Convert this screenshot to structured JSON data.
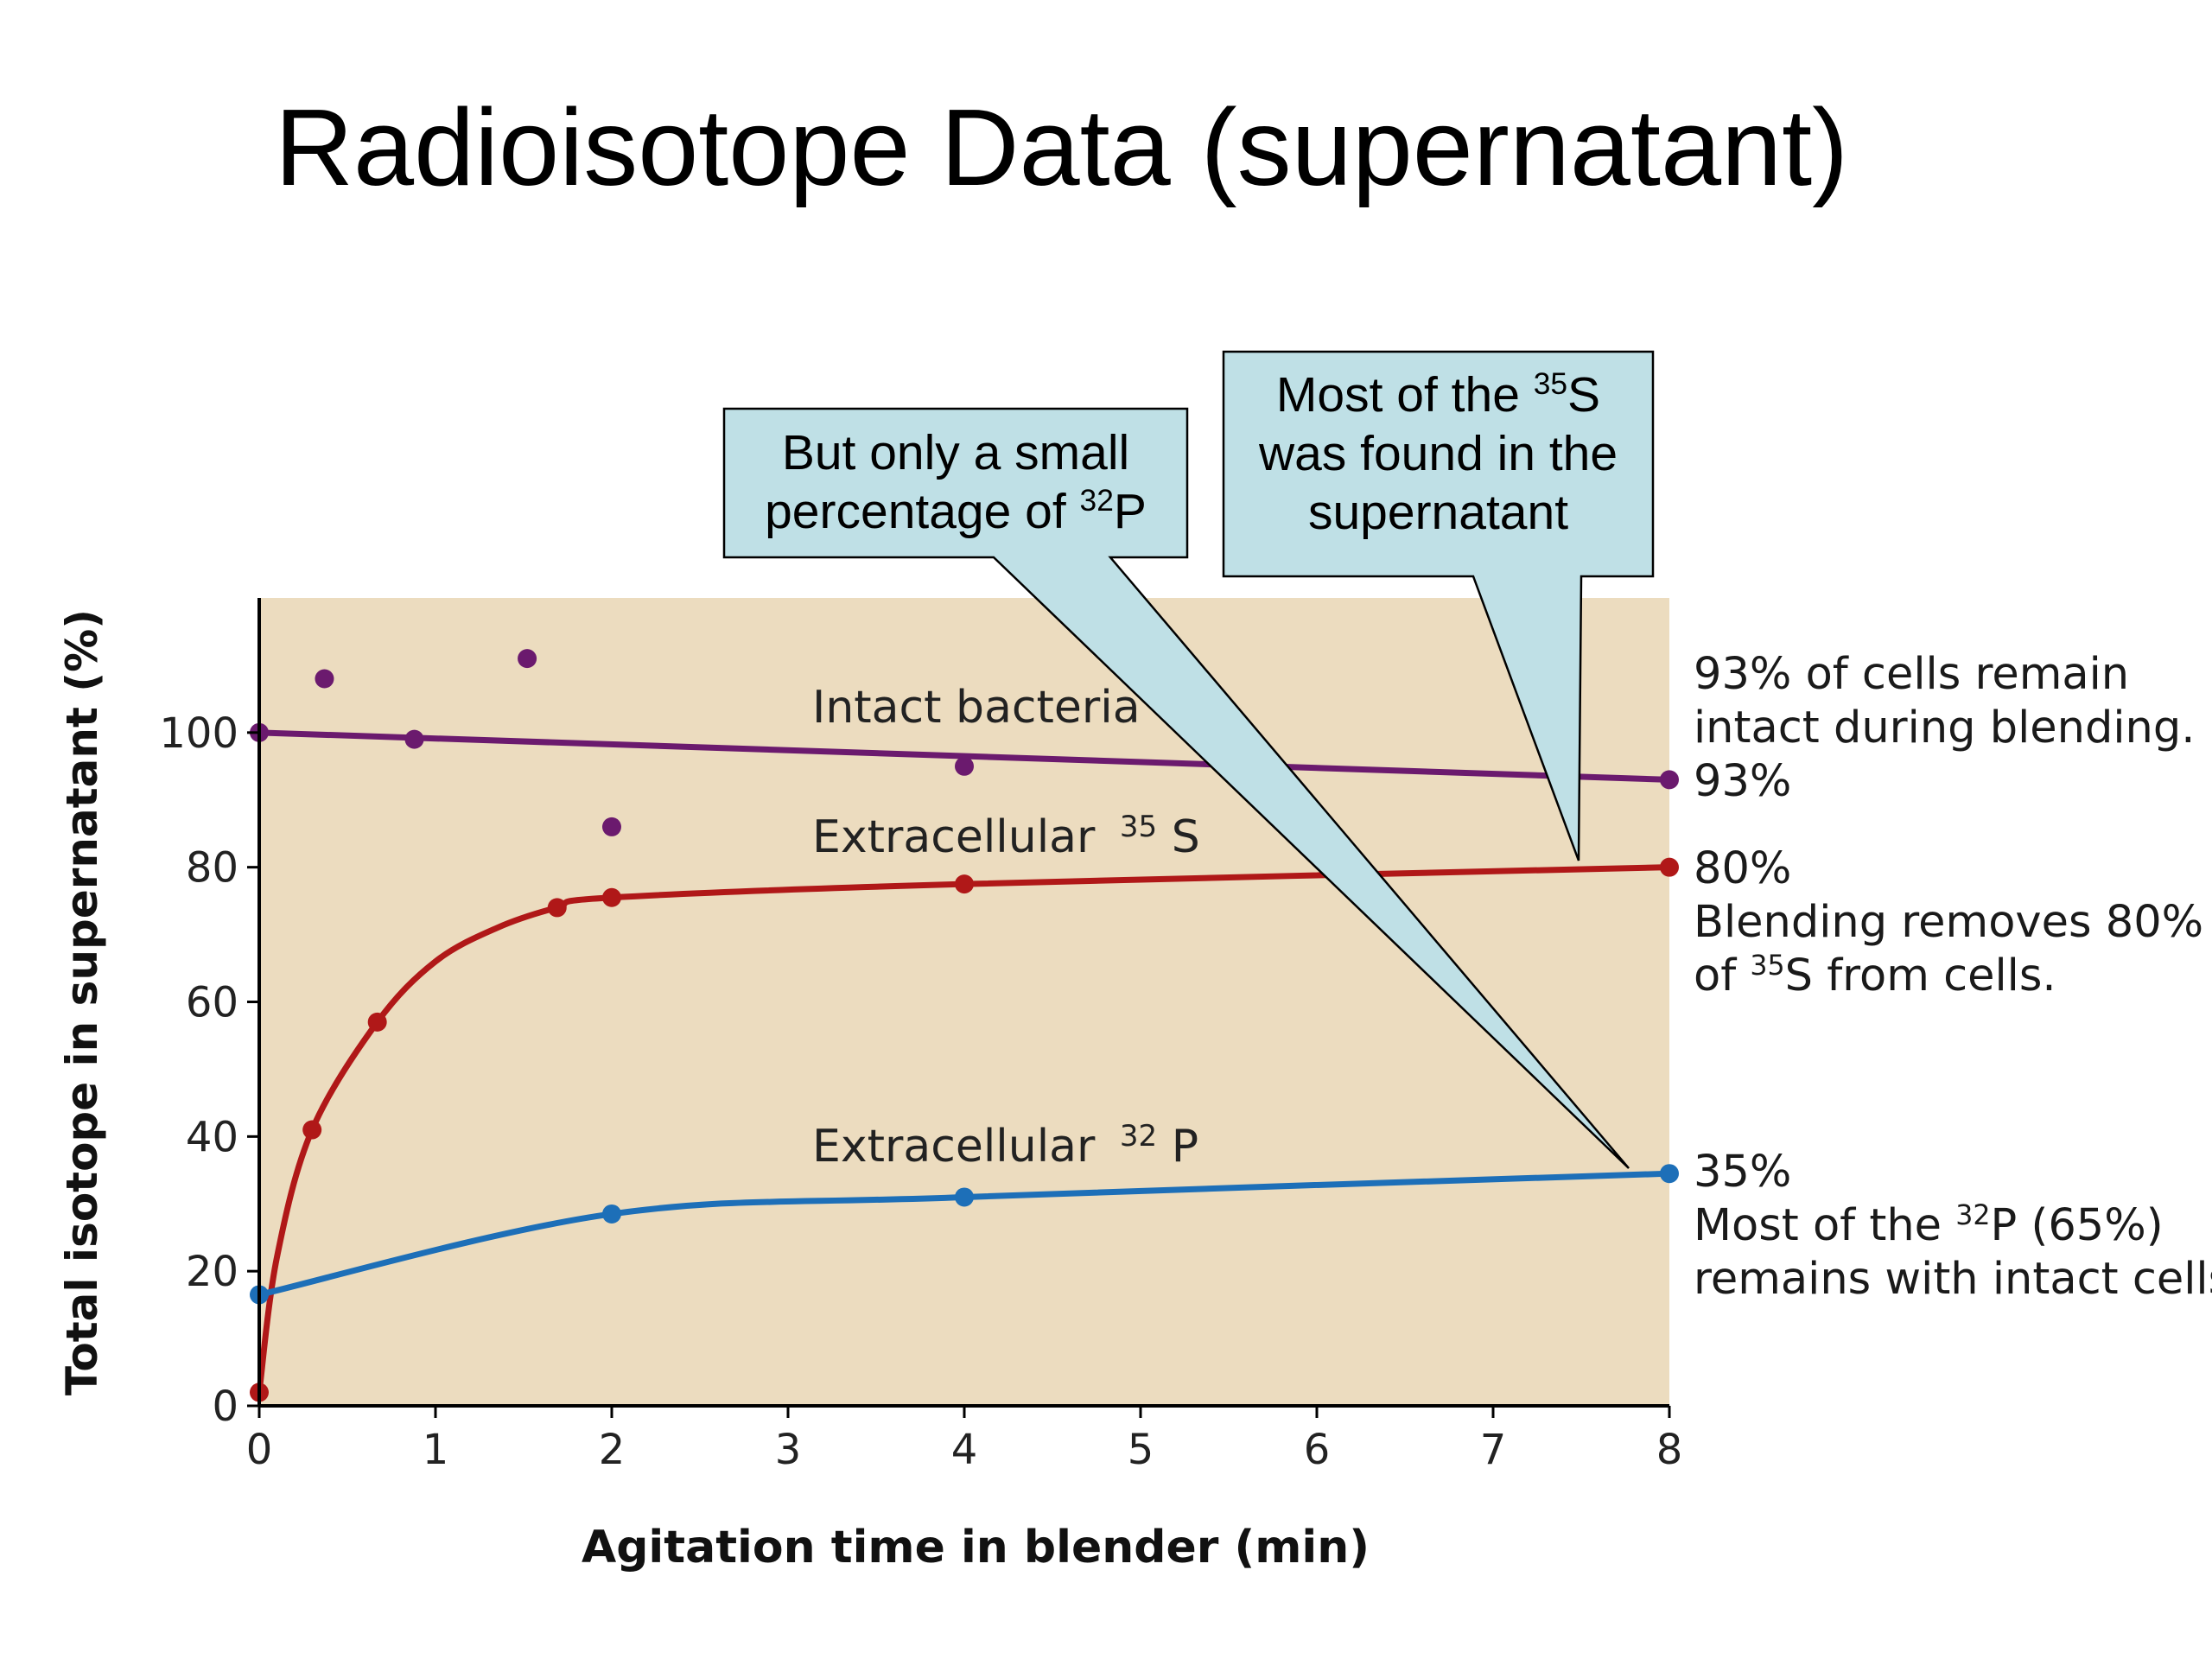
{
  "slide": {
    "title": "Radioisotope Data (supernatant)"
  },
  "chart_data": {
    "type": "line",
    "title": "",
    "xlabel": "Agitation time in blender (min)",
    "ylabel": "Total isotope in supernatant (%)",
    "xlim": [
      0,
      8
    ],
    "ylim": [
      0,
      120
    ],
    "xticks": [
      0,
      1,
      2,
      3,
      4,
      5,
      6,
      7,
      8
    ],
    "yticks": [
      0,
      20,
      40,
      60,
      80,
      100
    ],
    "grid": false,
    "plot_background": "#ecdcbf",
    "series": [
      {
        "name": "Intact bacteria",
        "color": "#6b1a6e",
        "line": {
          "x": [
            0,
            8
          ],
          "y": [
            100,
            93
          ]
        },
        "points": {
          "x": [
            0,
            0.37,
            0.88,
            1.52,
            2.0,
            4.0,
            8.0
          ],
          "y": [
            100,
            108,
            99,
            111,
            86,
            95,
            93
          ]
        }
      },
      {
        "name": "Extracellular",
        "isotope_mass": "35",
        "isotope_symbol": "S",
        "color": "#b01818",
        "line": {
          "x": [
            0,
            0.1,
            0.3,
            0.67,
            1.0,
            1.35,
            1.69,
            2.0,
            4.0,
            8.0
          ],
          "y": [
            2,
            22,
            41,
            57,
            66,
            71,
            74,
            75.5,
            77.5,
            80
          ]
        },
        "points": {
          "x": [
            0,
            0.3,
            0.67,
            1.69,
            2.0,
            4.0,
            8.0
          ],
          "y": [
            2,
            41,
            57,
            74,
            75.5,
            77.5,
            80
          ]
        }
      },
      {
        "name": "Extracellular",
        "isotope_mass": "32",
        "isotope_symbol": "P",
        "color": "#1d6fb8",
        "line": {
          "x": [
            0,
            2,
            4,
            8
          ],
          "y": [
            16.5,
            28.5,
            31,
            34.5
          ]
        },
        "points": {
          "x": [
            0,
            2,
            4,
            8
          ],
          "y": [
            16.5,
            28.5,
            31,
            34.5
          ]
        }
      }
    ]
  },
  "side_notes": {
    "bacteria": {
      "line1": "93% of cells remain",
      "line2": "intact during blending.",
      "line3": "93%"
    },
    "sulfur": {
      "line1": "80%",
      "line2": "Blending removes 80%",
      "line3_pre": "of ",
      "line3_sup": "35",
      "line3_post": "S from cells."
    },
    "phosphorus": {
      "line1": "35%",
      "line2_pre": "Most of the ",
      "line2_sup": "32",
      "line2_post": "P (65%)",
      "line3": "remains with intact cells."
    }
  },
  "callouts": {
    "sulfur": {
      "line1_pre": "Most of the ",
      "line1_sup": "35",
      "line1_post": "S",
      "line2": "was found in the",
      "line3": "supernatant",
      "fill": "#bfe0e6"
    },
    "phosphorus": {
      "line1": "But only a small",
      "line2_pre": "percentage of ",
      "line2_sup": "32",
      "line2_post": "P",
      "fill": "#bfe0e6"
    }
  }
}
